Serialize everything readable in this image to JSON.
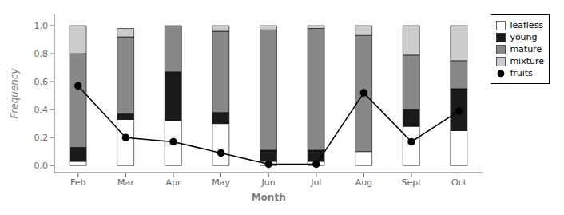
{
  "chart_data": {
    "type": "bar",
    "stacked": true,
    "categories": [
      "Feb",
      "Mar",
      "Apr",
      "May",
      "Jun",
      "Jul",
      "Aug",
      "Sept",
      "Oct"
    ],
    "series": [
      {
        "name": "leafless",
        "color": "#ffffff",
        "values": [
          0.03,
          0.33,
          0.32,
          0.3,
          0.03,
          0.03,
          0.1,
          0.28,
          0.25
        ]
      },
      {
        "name": "young",
        "color": "#1a1a1a",
        "values": [
          0.1,
          0.04,
          0.35,
          0.08,
          0.08,
          0.08,
          0.0,
          0.12,
          0.3
        ]
      },
      {
        "name": "mature",
        "color": "#888888",
        "values": [
          0.67,
          0.55,
          0.33,
          0.58,
          0.86,
          0.87,
          0.83,
          0.39,
          0.2
        ]
      },
      {
        "name": "mixture",
        "color": "#cccccc",
        "values": [
          0.2,
          0.06,
          0.0,
          0.04,
          0.03,
          0.02,
          0.07,
          0.21,
          0.25
        ]
      },
      {
        "name": "fruits",
        "type": "line",
        "color": "#000000",
        "marker": "circle",
        "values": [
          0.57,
          0.2,
          0.17,
          0.09,
          0.01,
          0.01,
          0.52,
          0.17,
          0.39
        ]
      }
    ],
    "xlabel": "Month",
    "ylabel": "Frequency",
    "ylim": [
      -0.05,
      1.08
    ],
    "yticks": [
      {
        "value": 0,
        "label": "0.0"
      },
      0.2,
      0.4,
      0.6,
      0.8,
      {
        "value": 1,
        "label": "1.0"
      }
    ],
    "legend": "upper right",
    "grid": false
  }
}
